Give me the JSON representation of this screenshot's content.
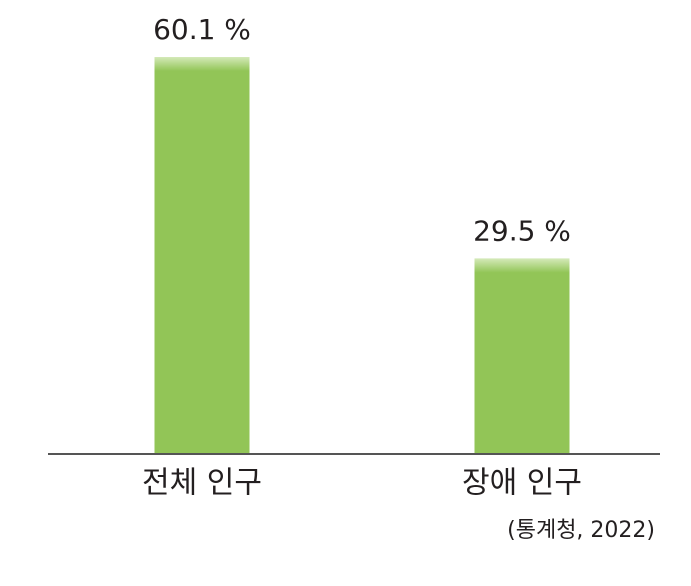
{
  "chart_data": {
    "type": "bar",
    "categories": [
      "전체 인구",
      "장애 인구"
    ],
    "values": [
      60.1,
      29.5
    ],
    "value_labels": [
      "60.1 %",
      "29.5 %"
    ],
    "color": "#92c557",
    "source": "(통계청, 2022)"
  }
}
